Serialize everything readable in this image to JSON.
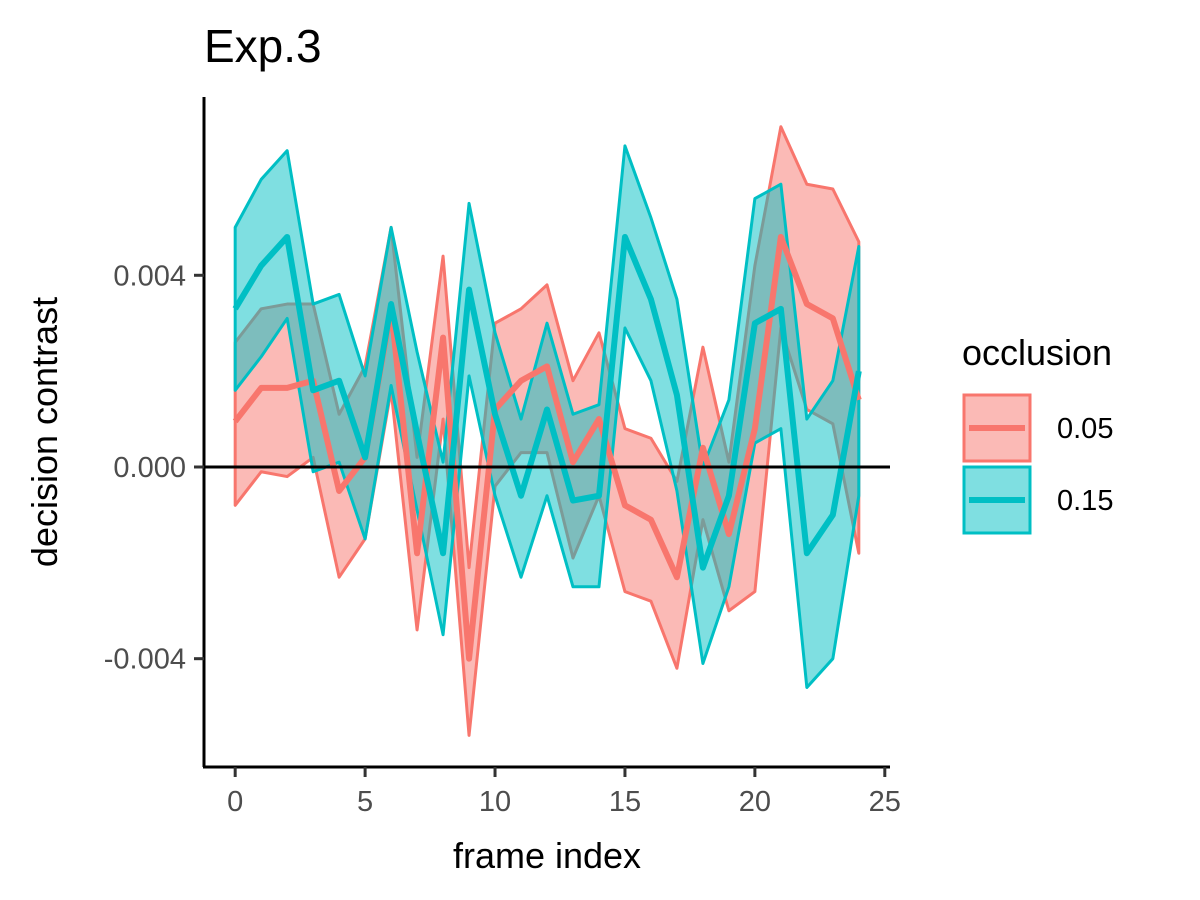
{
  "chart_data": {
    "type": "line",
    "title": "Exp.3",
    "xlabel": "frame index",
    "ylabel": "decision contrast",
    "xlim": [
      -1.2,
      25.2
    ],
    "ylim": [
      -0.00626,
      0.00772
    ],
    "x_ticks": [
      0,
      5,
      10,
      15,
      20,
      25
    ],
    "x_tick_labels": [
      "0",
      "5",
      "10",
      "15",
      "20",
      "25"
    ],
    "y_ticks": [
      -0.004,
      0.0,
      0.004
    ],
    "y_tick_labels": [
      "-0.004",
      "0.000",
      "0.004"
    ],
    "reference_line": 0.0,
    "grid": false,
    "legend": {
      "title": "occlusion",
      "placement": "right"
    },
    "x": [
      0,
      1,
      2,
      3,
      4,
      5,
      6,
      7,
      8,
      9,
      10,
      11,
      12,
      13,
      14,
      15,
      16,
      17,
      18,
      19,
      20,
      21,
      22,
      23,
      24
    ],
    "series": [
      {
        "name": "0.05",
        "color": "#F8766D",
        "mean": [
          0.00095,
          0.00165,
          0.00165,
          0.0018,
          -0.0005,
          0.0002,
          0.0033,
          -0.0018,
          0.0027,
          -0.004,
          0.0012,
          0.0018,
          0.0021,
          0.0001,
          0.001,
          -0.0008,
          -0.0011,
          -0.0023,
          0.0004,
          -0.0014,
          0.0008,
          0.0048,
          0.0034,
          0.0031,
          0.0014
        ],
        "lower": [
          -0.0008,
          -0.0001,
          -0.0002,
          0.0002,
          -0.0023,
          -0.0015,
          0.0016,
          -0.0034,
          0.001,
          -0.0056,
          -0.0004,
          0.0003,
          0.0003,
          -0.0019,
          -0.0006,
          -0.0026,
          -0.0028,
          -0.0042,
          -0.0011,
          -0.003,
          -0.0026,
          0.0029,
          0.0012,
          0.0009,
          -0.0018
        ],
        "upper": [
          0.0026,
          0.0033,
          0.0034,
          0.0034,
          0.0011,
          0.0021,
          0.005,
          0.0002,
          0.0044,
          -0.0021,
          0.003,
          0.0033,
          0.0038,
          0.0018,
          0.0028,
          0.0008,
          0.0006,
          -0.0003,
          0.0025,
          0.0001,
          0.0042,
          0.0071,
          0.0059,
          0.0058,
          0.0047
        ]
      },
      {
        "name": "0.15",
        "color": "#00BFC4",
        "mean": [
          0.0033,
          0.0042,
          0.0048,
          0.0016,
          0.0018,
          0.0002,
          0.0034,
          0.0007,
          -0.0018,
          0.0037,
          0.0011,
          -0.0006,
          0.0012,
          -0.0007,
          -0.0006,
          0.0048,
          0.0035,
          0.0015,
          -0.0021,
          -0.0006,
          0.003,
          0.0033,
          -0.0018,
          -0.001,
          0.002
        ],
        "lower": [
          0.0016,
          0.0023,
          0.0031,
          -0.0001,
          0.0001,
          -0.0015,
          0.0017,
          -0.0009,
          -0.0035,
          0.0019,
          -0.0006,
          -0.0023,
          -0.0006,
          -0.0025,
          -0.0025,
          0.0029,
          0.0018,
          -0.0005,
          -0.0041,
          -0.0025,
          0.0005,
          0.0008,
          -0.0046,
          -0.004,
          -0.0006
        ],
        "upper": [
          0.005,
          0.006,
          0.0066,
          0.0034,
          0.0036,
          0.0019,
          0.005,
          0.0024,
          0.0001,
          0.0055,
          0.0028,
          0.001,
          0.003,
          0.0011,
          0.0013,
          0.0067,
          0.0052,
          0.0035,
          0.0,
          0.0014,
          0.0056,
          0.0059,
          0.001,
          0.0018,
          0.0046
        ]
      }
    ]
  }
}
